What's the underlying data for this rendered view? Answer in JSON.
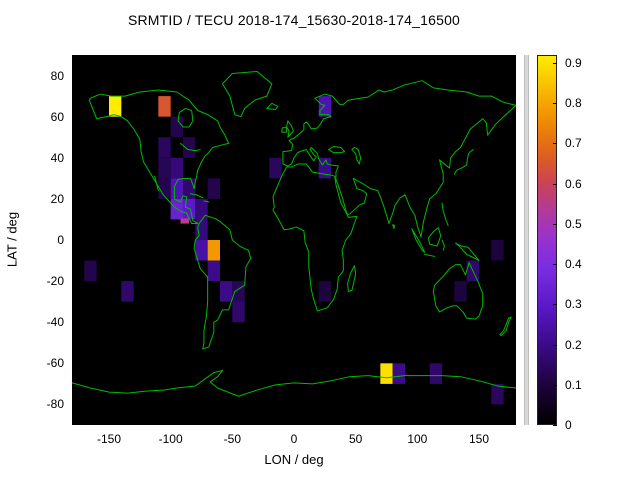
{
  "title": "SRMTID / TECU 2018-174_15630-2018-174_16500",
  "chart_data": {
    "type": "heatmap",
    "title": "SRMTID / TECU 2018-174_15630-2018-174_16500",
    "xlabel": "LON / deg",
    "ylabel": "LAT / deg",
    "xlim": [
      -180,
      180
    ],
    "ylim": [
      -90,
      90
    ],
    "x_ticks": [
      -150,
      -100,
      -50,
      0,
      50,
      100,
      150
    ],
    "y_ticks": [
      -80,
      -60,
      -40,
      -20,
      0,
      20,
      40,
      60,
      80
    ],
    "grid": false,
    "background_color": "#000000",
    "coastline_color": "#00bb00",
    "cell_size_deg": 10,
    "colorbar": {
      "min": 0,
      "max": 0.92,
      "tick_values": [
        0,
        0.1,
        0.2,
        0.3,
        0.4,
        0.5,
        0.6,
        0.7,
        0.8,
        0.9
      ],
      "stops": [
        {
          "t": 0.0,
          "color": "#000000"
        },
        {
          "t": 0.1,
          "color": "#1c0338"
        },
        {
          "t": 0.22,
          "color": "#3c0b8c"
        },
        {
          "t": 0.32,
          "color": "#5a18c8"
        },
        {
          "t": 0.42,
          "color": "#7a2ce0"
        },
        {
          "t": 0.5,
          "color": "#9632d2"
        },
        {
          "t": 0.58,
          "color": "#b23a9a"
        },
        {
          "t": 0.66,
          "color": "#cc4452"
        },
        {
          "t": 0.74,
          "color": "#e0641a"
        },
        {
          "t": 0.84,
          "color": "#f29400"
        },
        {
          "t": 1.0,
          "color": "#ffec00"
        }
      ]
    },
    "cells": [
      {
        "lon": -150,
        "lat": 60,
        "v": 0.93
      },
      {
        "lon": -110,
        "lat": 60,
        "v": 0.65
      },
      {
        "lon": -100,
        "lat": 50,
        "v": 0.12
      },
      {
        "lon": -110,
        "lat": 40,
        "v": 0.14
      },
      {
        "lon": -90,
        "lat": 40,
        "v": 0.12
      },
      {
        "lon": -110,
        "lat": 30,
        "v": 0.13
      },
      {
        "lon": -100,
        "lat": 30,
        "v": 0.18
      },
      {
        "lon": -20,
        "lat": 30,
        "v": 0.14
      },
      {
        "lon": 20,
        "lat": 30,
        "v": 0.2
      },
      {
        "lon": -110,
        "lat": 20,
        "v": 0.12
      },
      {
        "lon": -100,
        "lat": 20,
        "v": 0.26
      },
      {
        "lon": -90,
        "lat": 20,
        "v": 0.16
      },
      {
        "lon": -70,
        "lat": 20,
        "v": 0.12
      },
      {
        "lon": -100,
        "lat": 10,
        "v": 0.34
      },
      {
        "lon": -90,
        "lat": 10,
        "v": 0.3
      },
      {
        "lon": -80,
        "lat": 10,
        "v": 0.18
      },
      {
        "lon": -92,
        "lat": 8,
        "w": 7,
        "h": 2.5,
        "v": 0.55
      },
      {
        "lon": -80,
        "lat": 0,
        "v": 0.18
      },
      {
        "lon": -80,
        "lat": -10,
        "v": 0.24
      },
      {
        "lon": -70,
        "lat": -10,
        "v": 0.78
      },
      {
        "lon": -70,
        "lat": -20,
        "v": 0.2
      },
      {
        "lon": -170,
        "lat": -20,
        "v": 0.12
      },
      {
        "lon": -140,
        "lat": -30,
        "v": 0.16
      },
      {
        "lon": -60,
        "lat": -30,
        "v": 0.2
      },
      {
        "lon": -50,
        "lat": -30,
        "v": 0.13
      },
      {
        "lon": -50,
        "lat": -40,
        "v": 0.16
      },
      {
        "lon": 20,
        "lat": -30,
        "v": 0.1
      },
      {
        "lon": 20,
        "lat": 60,
        "v": 0.26
      },
      {
        "lon": 140,
        "lat": -20,
        "v": 0.16
      },
      {
        "lon": 130,
        "lat": -30,
        "v": 0.1
      },
      {
        "lon": 160,
        "lat": -10,
        "v": 0.1
      },
      {
        "lon": 70,
        "lat": -70,
        "v": 0.9
      },
      {
        "lon": 80,
        "lat": -70,
        "v": 0.2
      },
      {
        "lon": 110,
        "lat": -70,
        "v": 0.16
      },
      {
        "lon": 160,
        "lat": -80,
        "v": 0.14
      }
    ]
  }
}
